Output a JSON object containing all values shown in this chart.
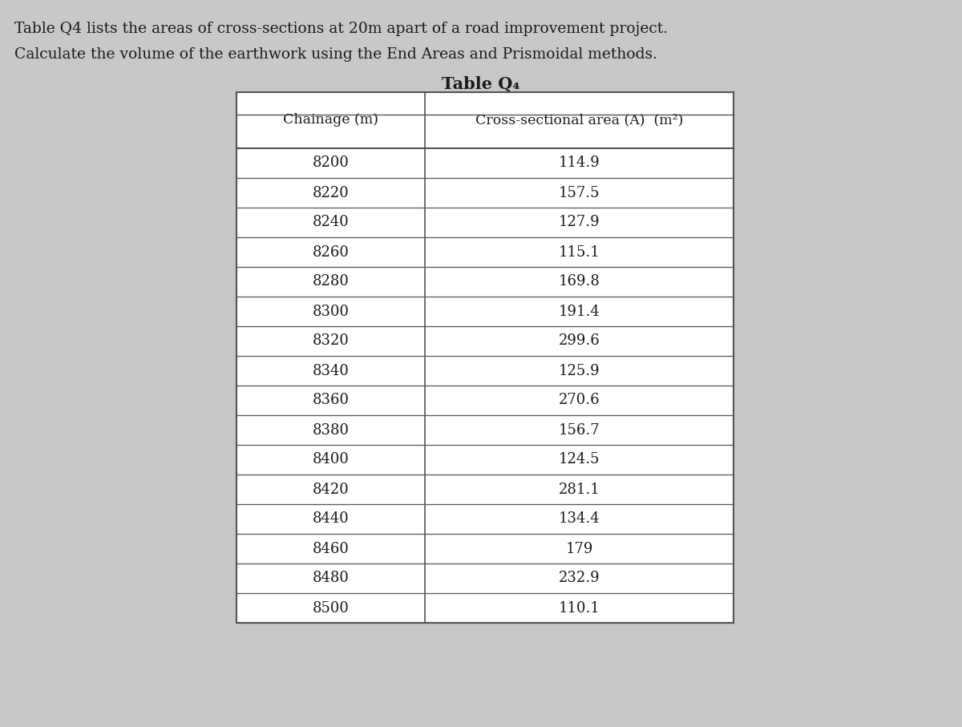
{
  "title_text": "Table Q₄",
  "intro_line1": "Table Q4 lists the areas of cross-sections at 20m apart of a road improvement project.",
  "intro_line2": "Calculate the volume of the earthwork using the End Areas and Prismoidal methods.",
  "col1_header": "Chainage (m)",
  "col2_header": "Cross-sectional area (A)  (m²)",
  "chainages": [
    "8200",
    "8220",
    "8240",
    "8260",
    "8280",
    "8300",
    "8320",
    "8340",
    "8360",
    "8380",
    "8400",
    "8420",
    "8440",
    "8460",
    "8480",
    "8500"
  ],
  "areas": [
    "114.9",
    "157.5",
    "127.9",
    "115.1",
    "169.8",
    "191.4",
    "299.6",
    "125.9",
    "270.6",
    "156.7",
    "124.5",
    "281.1",
    "134.4",
    "179",
    "232.9",
    "110.1"
  ],
  "bg_color": "#c8c8c8",
  "table_face": "#ffffff",
  "text_color": "#1a1a1a",
  "line_color": "#555555",
  "title_fontsize": 15,
  "intro_fontsize": 13.5,
  "col_header_fontsize": 12.5,
  "data_fontsize": 13
}
